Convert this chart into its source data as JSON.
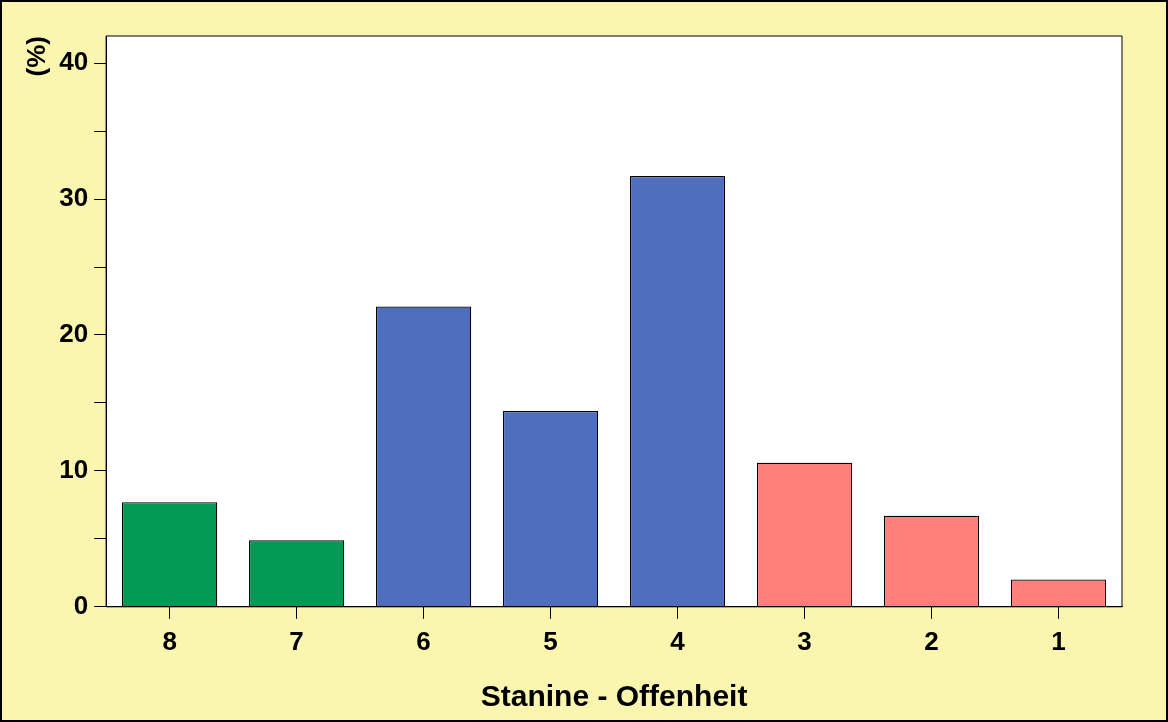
{
  "chart_data": {
    "type": "bar",
    "xlabel": "Stanine - Offenheit",
    "ylabel": "(%)",
    "categories": [
      "8",
      "7",
      "6",
      "5",
      "4",
      "3",
      "2",
      "1"
    ],
    "values": [
      7.7,
      4.9,
      22.1,
      14.4,
      31.7,
      10.6,
      6.7,
      2.0
    ],
    "colors": [
      "#009a55",
      "#009a55",
      "#4f6fbe",
      "#4f6fbe",
      "#4f6fbe",
      "#ff7f7a",
      "#ff7f7a",
      "#ff7f7a"
    ],
    "ylim": [
      0,
      42
    ],
    "yticks": [
      0,
      {
        "value": 5,
        "label": null
      },
      10,
      {
        "value": 15,
        "label": null
      },
      20,
      {
        "value": 25,
        "label": null
      },
      30,
      {
        "value": 35,
        "label": null
      },
      40
    ],
    "grid": false,
    "legend": false
  }
}
